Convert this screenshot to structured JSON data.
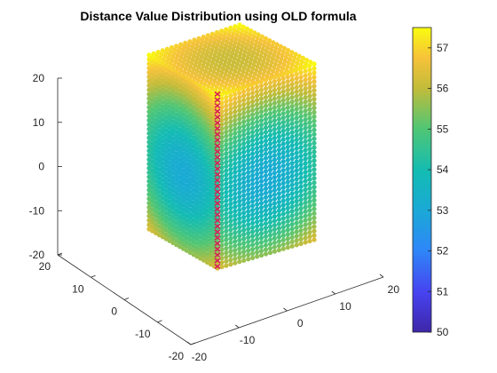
{
  "chart_data": {
    "type": "scatter",
    "title": "Distance Value Distribution using OLD formula",
    "projection": "3-D view (MATLAB default azimuth/elevation)",
    "x_ticks": [
      "-20",
      "-10",
      "0",
      "10",
      "20"
    ],
    "y_ticks": [
      "-20",
      "-10",
      "0",
      "10",
      "20"
    ],
    "z_ticks": [
      "-20",
      "-10",
      "0",
      "10",
      "20"
    ],
    "xlim": [
      -20,
      20
    ],
    "ylim": [
      -20,
      20
    ],
    "zlim": [
      -20,
      20
    ],
    "box_extent": {
      "x": [
        -10,
        10
      ],
      "y": [
        -10,
        10
      ],
      "z": [
        -15,
        20
      ]
    },
    "value_at_center": 50,
    "value_at_top_corner": 57.5,
    "grid": false,
    "colorbar": {
      "colormap": "parula",
      "placement": "right",
      "range": [
        50,
        57.5
      ],
      "tick_values": [
        50,
        51,
        52,
        53,
        54,
        55,
        56,
        57
      ],
      "tick_labels": [
        "50",
        "51",
        "52",
        "53",
        "54",
        "55",
        "56",
        "57"
      ]
    },
    "marked_line": {
      "color": "#d62058",
      "x": 0,
      "y": 0,
      "z_range": [
        -20,
        16
      ]
    }
  }
}
